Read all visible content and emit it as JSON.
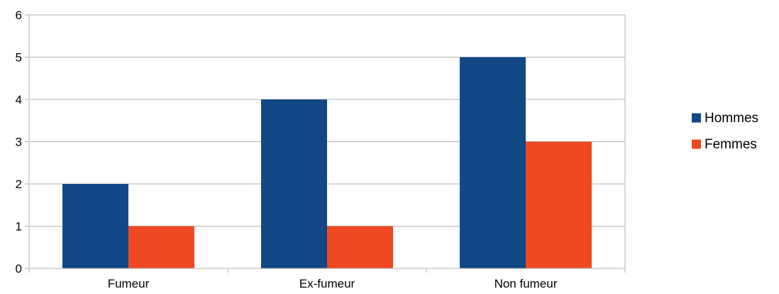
{
  "chart_data": {
    "type": "bar",
    "title": "",
    "xlabel": "",
    "ylabel": "",
    "categories": [
      "Fumeur",
      "Ex-fumeur",
      "Non fumeur"
    ],
    "series": [
      {
        "name": "Hommes",
        "values": [
          2,
          4,
          5
        ],
        "color": "#134886"
      },
      {
        "name": "Femmes",
        "values": [
          1,
          1,
          3
        ],
        "color": "#EF4923"
      }
    ],
    "ylim": [
      0,
      6
    ],
    "yticks": [
      "0",
      "1",
      "2",
      "3",
      "4",
      "5",
      "6"
    ],
    "grid": true,
    "legend": "right"
  }
}
